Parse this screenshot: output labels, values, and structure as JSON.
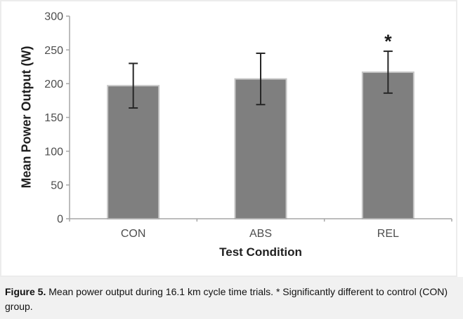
{
  "figure": {
    "caption_label": "Figure 5.",
    "caption_text": " Mean power output during 16.1 km cycle time trials. * Significantly different to control (CON) group."
  },
  "colors": {
    "bar_fill": "#7f7f7f",
    "bar_border": "#c6c6c6",
    "error_bar": "#262626",
    "axis_line": "#a6a6a6",
    "tick_label": "#4d4d4d",
    "axis_title": "#1f1f1f",
    "sig_marker": "#1a1a1a",
    "caption_bg": "#f1f1f1",
    "chart_border": "#ececec"
  },
  "chart_data": {
    "type": "bar",
    "title": "",
    "categories": [
      "CON",
      "ABS",
      "REL"
    ],
    "series": [
      {
        "name": "Mean power output",
        "values": [
          197,
          207,
          217
        ],
        "error_upper": [
          230,
          245,
          248
        ],
        "error_lower": [
          164,
          169,
          186
        ]
      }
    ],
    "significance_markers": [
      "",
      "",
      "*"
    ],
    "xlabel": "Test Condition",
    "ylabel": "Mean Power Output (W)",
    "ylim": [
      0,
      300
    ],
    "yticks": [
      0,
      50,
      100,
      150,
      200,
      250,
      300
    ],
    "grid": false,
    "legend": "none"
  }
}
